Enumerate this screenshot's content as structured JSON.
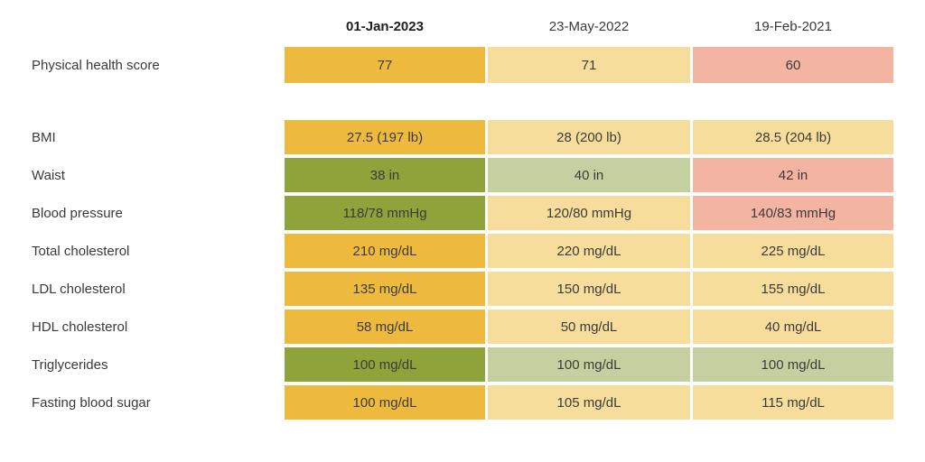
{
  "chart_data": {
    "type": "table",
    "columns": [
      {
        "label": "01-Jan-2023",
        "emphasis": true
      },
      {
        "label": "23-May-2022",
        "emphasis": false
      },
      {
        "label": "19-Feb-2021",
        "emphasis": false
      }
    ],
    "rows": [
      {
        "label": "Physical health score",
        "spacer_after": true,
        "tall": true,
        "cells": [
          {
            "text": "77",
            "status": "gold"
          },
          {
            "text": "71",
            "status": "paleyellow"
          },
          {
            "text": "60",
            "status": "salmon"
          }
        ]
      },
      {
        "label": "BMI",
        "spacer_after": false,
        "tall": false,
        "cells": [
          {
            "text": "27.5 (197 lb)",
            "status": "gold"
          },
          {
            "text": "28 (200 lb)",
            "status": "paleyellow"
          },
          {
            "text": "28.5 (204 lb)",
            "status": "paleyellow"
          }
        ]
      },
      {
        "label": "Waist",
        "spacer_after": false,
        "tall": false,
        "cells": [
          {
            "text": "38 in",
            "status": "olive"
          },
          {
            "text": "40 in",
            "status": "palegreen"
          },
          {
            "text": "42 in",
            "status": "salmon"
          }
        ]
      },
      {
        "label": "Blood pressure",
        "spacer_after": false,
        "tall": false,
        "cells": [
          {
            "text": "118/78 mmHg",
            "status": "olive"
          },
          {
            "text": "120/80 mmHg",
            "status": "paleyellow"
          },
          {
            "text": "140/83 mmHg",
            "status": "salmon"
          }
        ]
      },
      {
        "label": "Total cholesterol",
        "spacer_after": false,
        "tall": false,
        "cells": [
          {
            "text": "210 mg/dL",
            "status": "gold"
          },
          {
            "text": "220 mg/dL",
            "status": "paleyellow"
          },
          {
            "text": "225 mg/dL",
            "status": "paleyellow"
          }
        ]
      },
      {
        "label": "LDL cholesterol",
        "spacer_after": false,
        "tall": false,
        "cells": [
          {
            "text": "135 mg/dL",
            "status": "gold"
          },
          {
            "text": "150 mg/dL",
            "status": "paleyellow"
          },
          {
            "text": "155 mg/dL",
            "status": "paleyellow"
          }
        ]
      },
      {
        "label": "HDL cholesterol",
        "spacer_after": false,
        "tall": false,
        "cells": [
          {
            "text": "58 mg/dL",
            "status": "gold"
          },
          {
            "text": "50 mg/dL",
            "status": "paleyellow"
          },
          {
            "text": "40 mg/dL",
            "status": "paleyellow"
          }
        ]
      },
      {
        "label": "Triglycerides",
        "spacer_after": false,
        "tall": false,
        "cells": [
          {
            "text": "100 mg/dL",
            "status": "olive"
          },
          {
            "text": "100 mg/dL",
            "status": "palegreen"
          },
          {
            "text": "100 mg/dL",
            "status": "palegreen"
          }
        ]
      },
      {
        "label": "Fasting blood sugar",
        "spacer_after": false,
        "tall": false,
        "cells": [
          {
            "text": "100 mg/dL",
            "status": "gold"
          },
          {
            "text": "105 mg/dL",
            "status": "paleyellow"
          },
          {
            "text": "115 mg/dL",
            "status": "paleyellow"
          }
        ]
      }
    ],
    "status_colors": {
      "gold": "#EDBA3D",
      "paleyellow": "#F6DD9B",
      "olive": "#8FA33B",
      "palegreen": "#C5D0A1",
      "salmon": "#F4B4A2"
    },
    "layout": {
      "grid": "off",
      "legend": "none"
    }
  }
}
